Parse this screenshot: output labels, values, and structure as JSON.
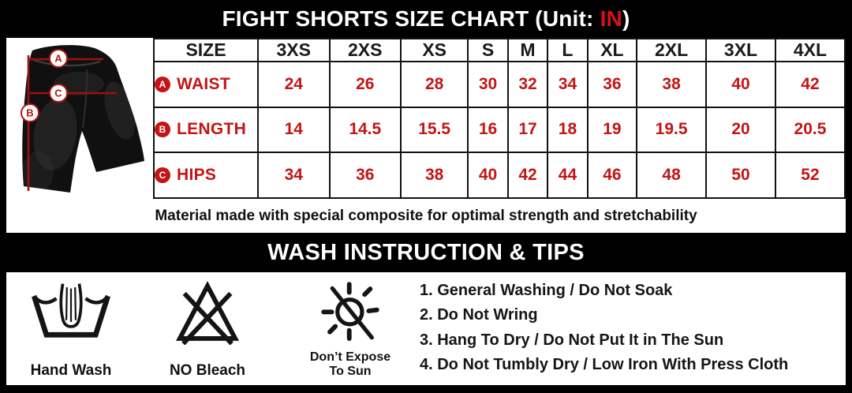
{
  "title": {
    "prefix": "FIGHT SHORTS SIZE CHART (Unit: ",
    "unit": "IN",
    "suffix": ")"
  },
  "size_chart": {
    "header_label": "SIZE",
    "sizes": [
      "3XS",
      "2XS",
      "XS",
      "S",
      "M",
      "L",
      "XL",
      "2XL",
      "3XL",
      "4XL"
    ],
    "rows": [
      {
        "badge": "A",
        "label": "WAIST",
        "values": [
          "24",
          "26",
          "28",
          "30",
          "32",
          "34",
          "36",
          "38",
          "40",
          "42"
        ]
      },
      {
        "badge": "B",
        "label": "LENGTH",
        "values": [
          "14",
          "14.5",
          "15.5",
          "16",
          "17",
          "18",
          "19",
          "19.5",
          "20",
          "20.5"
        ]
      },
      {
        "badge": "C",
        "label": "HIPS",
        "values": [
          "34",
          "36",
          "38",
          "40",
          "42",
          "44",
          "46",
          "48",
          "50",
          "52"
        ]
      }
    ]
  },
  "shorts_figure": {
    "labels": [
      "A",
      "B",
      "C"
    ]
  },
  "material_note": "Material made with special composite for optimal strength and stretchability",
  "wash_section": {
    "header": "WASH INSTRUCTION & TIPS",
    "icons": [
      {
        "name": "hand-wash-icon",
        "label": "Hand Wash"
      },
      {
        "name": "no-bleach-icon",
        "label": "NO Bleach"
      },
      {
        "name": "no-sun-icon",
        "label": "Don’t Expose To Sun"
      }
    ],
    "tips": [
      "1. General Washing / Do Not Soak",
      "2. Do Not Wring",
      "3. Hang To Dry / Do Not Put It in The Sun",
      "4. Do Not Tumbly Dry / Low Iron With Press Cloth"
    ]
  },
  "colors": {
    "table_red": "#c41414",
    "title_unit_red": "#d8101c",
    "measure_line_red": "#9e1111",
    "icon_black": "#141414"
  }
}
